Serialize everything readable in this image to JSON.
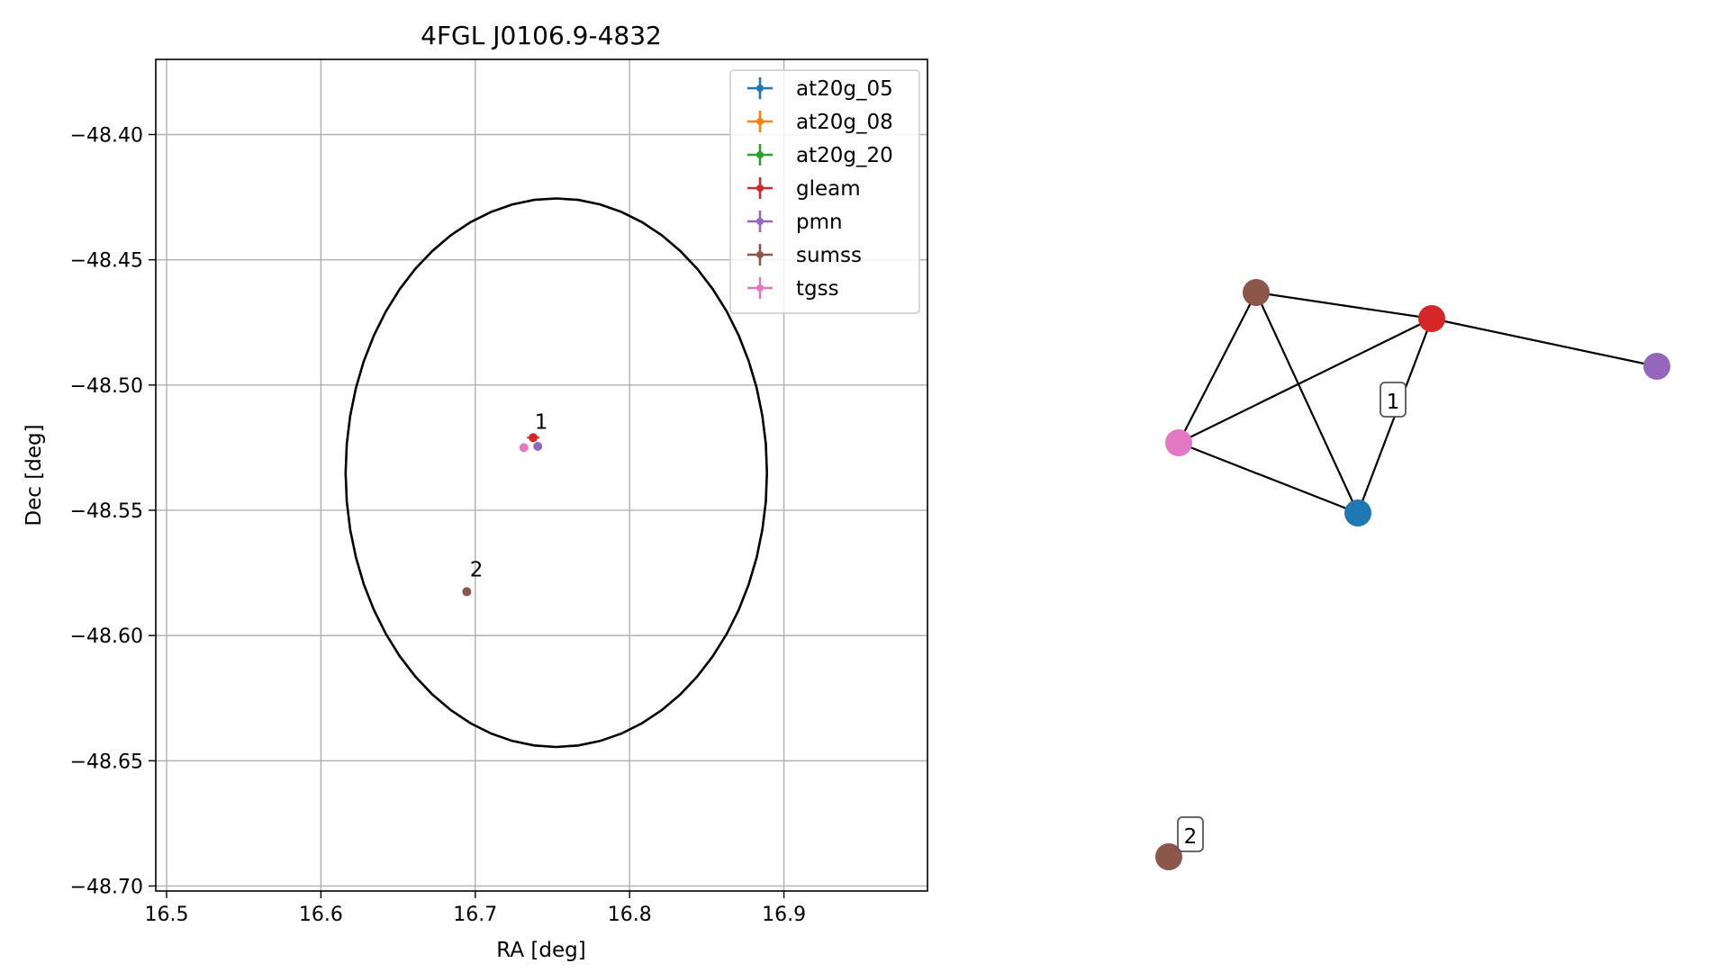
{
  "chart_data": [
    {
      "type": "scatter",
      "title": "4FGL J0106.9-4832",
      "xlabel": "RA [deg]",
      "ylabel": "Dec [deg]",
      "xlim": [
        16.493,
        16.993
      ],
      "ylim": [
        -48.702,
        -48.37
      ],
      "grid": true,
      "legend_position": "top-right",
      "x_ticks": [
        "16.5",
        "16.6",
        "16.7",
        "16.8",
        "16.9"
      ],
      "x_tick_values": [
        16.5,
        16.6,
        16.7,
        16.8,
        16.9
      ],
      "y_ticks": [
        "−48.40",
        "−48.45",
        "−48.50",
        "−48.55",
        "−48.60",
        "−48.65",
        "−48.70"
      ],
      "y_tick_values": [
        -48.4,
        -48.45,
        -48.5,
        -48.55,
        -48.6,
        -48.65,
        -48.7
      ],
      "ellipse": {
        "center_ra": 16.7525,
        "center_dec": -48.535,
        "semi_ra": 0.1365,
        "semi_dec": 0.1095,
        "color": "#000000"
      },
      "series": [
        {
          "name": "at20g_05",
          "color": "#1f77b4",
          "points": []
        },
        {
          "name": "at20g_08",
          "color": "#ff7f0e",
          "points": []
        },
        {
          "name": "at20g_20",
          "color": "#2ca02c",
          "points": []
        },
        {
          "name": "gleam",
          "color": "#d62728",
          "points": [
            {
              "ra": 16.7375,
              "dec": -48.521,
              "err_ra": 0.004,
              "err_dec": 0.001
            }
          ]
        },
        {
          "name": "pmn",
          "color": "#9467bd",
          "points": [
            {
              "ra": 16.7405,
              "dec": -48.5245,
              "err_ra": 0.0,
              "err_dec": 0.0
            }
          ]
        },
        {
          "name": "sumss",
          "color": "#8c564b",
          "points": [
            {
              "ra": 16.6945,
              "dec": -48.5825,
              "err_ra": 0.0,
              "err_dec": 0.0
            }
          ]
        },
        {
          "name": "tgss",
          "color": "#e377c2",
          "points": [
            {
              "ra": 16.7315,
              "dec": -48.525,
              "err_ra": 0.0,
              "err_dec": 0.0
            }
          ]
        }
      ],
      "annotations": [
        {
          "text": "1",
          "ra": 16.7385,
          "dec": -48.5175
        },
        {
          "text": "2",
          "ra": 16.6965,
          "dec": -48.5765
        }
      ]
    },
    {
      "type": "network",
      "nodes": [
        {
          "id": "sumss",
          "color": "#8c564b"
        },
        {
          "id": "gleam",
          "color": "#d62728"
        },
        {
          "id": "pmn",
          "color": "#9467bd"
        },
        {
          "id": "tgss",
          "color": "#e377c2"
        },
        {
          "id": "at20g_05",
          "color": "#1f77b4"
        },
        {
          "id": "sumss_2",
          "color": "#8c564b"
        }
      ],
      "edges": [
        [
          "sumss",
          "gleam"
        ],
        [
          "sumss",
          "tgss"
        ],
        [
          "sumss",
          "at20g_05"
        ],
        [
          "gleam",
          "pmn"
        ],
        [
          "gleam",
          "tgss"
        ],
        [
          "gleam",
          "at20g_05"
        ],
        [
          "tgss",
          "at20g_05"
        ]
      ],
      "labels": [
        {
          "text": "1"
        },
        {
          "text": "2"
        }
      ]
    }
  ]
}
